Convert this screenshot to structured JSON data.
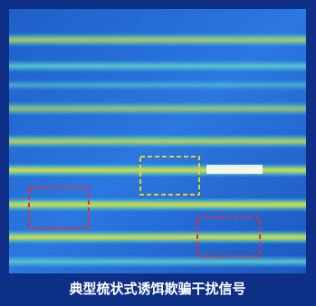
{
  "caption": "典型梳状式诱饵欺骗干扰信号"
}
